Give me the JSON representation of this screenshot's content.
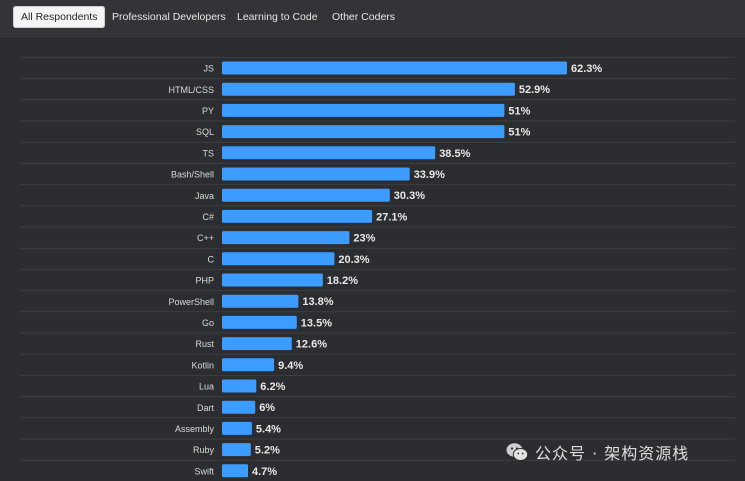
{
  "tabs": [
    {
      "label": "All Respondents",
      "active": true
    },
    {
      "label": "Professional Developers",
      "active": false
    },
    {
      "label": "Learning to Code",
      "active": false
    },
    {
      "label": "Other Coders",
      "active": false
    }
  ],
  "chart_data": {
    "type": "bar",
    "orientation": "horizontal",
    "title": "",
    "xlabel": "",
    "ylabel": "",
    "xlim": [
      0,
      100
    ],
    "categories": [
      "JS",
      "HTML/CSS",
      "PY",
      "SQL",
      "TS",
      "Bash/Shell",
      "Java",
      "C#",
      "C++",
      "C",
      "PHP",
      "PowerShell",
      "Go",
      "Rust",
      "Kotlin",
      "Lua",
      "Dart",
      "Assembly",
      "Ruby",
      "Swift"
    ],
    "values": [
      62.3,
      52.9,
      51,
      51,
      38.5,
      33.9,
      30.3,
      27.1,
      23,
      20.3,
      18.2,
      13.8,
      13.5,
      12.6,
      9.4,
      6.2,
      6,
      5.4,
      5.2,
      4.7
    ],
    "value_labels": [
      "62.3%",
      "52.9%",
      "51%",
      "51%",
      "38.5%",
      "33.9%",
      "30.3%",
      "27.1%",
      "23%",
      "20.3%",
      "18.2%",
      "13.8%",
      "13.5%",
      "12.6%",
      "9.4%",
      "6.2%",
      "6%",
      "5.4%",
      "5.2%",
      "4.7%"
    ],
    "bar_color": "#3d9cff",
    "label_color": "#e8e8e8",
    "grid_color": "#3c3f43"
  },
  "watermark": {
    "text": "公众号 · 架构资源栈",
    "icon": "wechat-icon"
  }
}
